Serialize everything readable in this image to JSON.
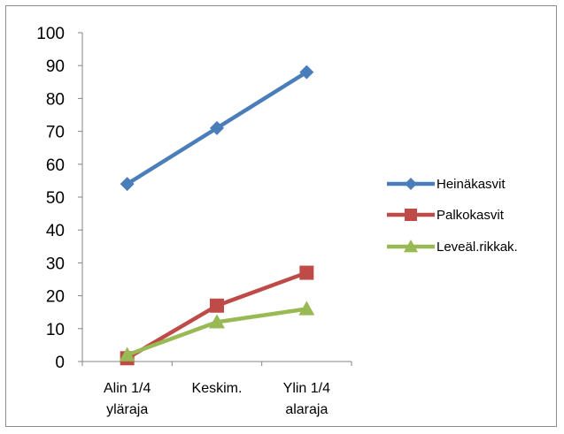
{
  "chart_data": {
    "type": "line",
    "categories": [
      [
        "Alin 1/4",
        "yläraja"
      ],
      [
        "Keskim.",
        ""
      ],
      [
        "Ylin 1/4",
        "alaraja"
      ]
    ],
    "ylim": [
      0,
      100
    ],
    "yticks": [
      0,
      10,
      20,
      30,
      40,
      50,
      60,
      70,
      80,
      90,
      100
    ],
    "grid": false,
    "legend_position": "right",
    "series": [
      {
        "name": "Heinäkasvit",
        "values": [
          54,
          71,
          88
        ],
        "color": "#4a7ebb",
        "marker": "diamond"
      },
      {
        "name": "Palkokasvit",
        "values": [
          1,
          17,
          27
        ],
        "color": "#be4b48",
        "marker": "square"
      },
      {
        "name": "Leveäl.rikkak.",
        "values": [
          2,
          12,
          16
        ],
        "color": "#98b954",
        "marker": "triangle"
      }
    ]
  }
}
